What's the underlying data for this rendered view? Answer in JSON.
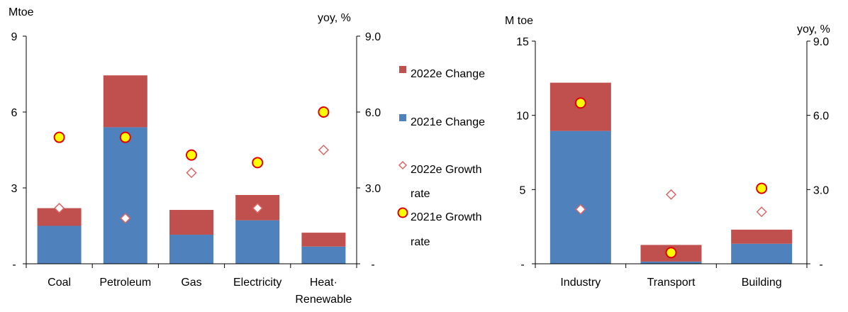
{
  "colors": {
    "change_2022": "#c0504d",
    "change_2021": "#4f81bd",
    "marker_2021_fill": "#ffff00",
    "marker_2021_stroke": "#e00000",
    "marker_2022_fill": "#ffffff",
    "marker_2022_stroke": "#e06666",
    "axis": "#000000"
  },
  "legend": {
    "placement": "between-panels",
    "items": [
      {
        "label_lines": [
          "2022e Change"
        ],
        "marker": "square",
        "color_key": "change_2022"
      },
      {
        "label_lines": [
          "2021e Change"
        ],
        "marker": "square",
        "color_key": "change_2021"
      },
      {
        "label_lines": [
          "2022e Growth",
          "rate"
        ],
        "marker": "diamond",
        "color_key": "marker_2022_stroke"
      },
      {
        "label_lines": [
          "2021e Growth",
          "rate"
        ],
        "marker": "circle",
        "color_key": "marker_2021_fill"
      }
    ]
  },
  "chart_data": [
    {
      "type": "bar",
      "stacked": true,
      "left_axis_unit": "Mtoe",
      "right_axis_unit": "yoy, %",
      "categories": [
        [
          "Coal"
        ],
        [
          "Petroleum"
        ],
        [
          "Gas"
        ],
        [
          "Electricity"
        ],
        [
          "Heat·",
          "Renewable"
        ]
      ],
      "ylim": [
        0,
        9
      ],
      "yticks": [
        0,
        3,
        6,
        9
      ],
      "ytick_labels": [
        "-",
        "3",
        "6",
        "9"
      ],
      "y2lim": [
        0,
        9
      ],
      "y2ticks": [
        0,
        3,
        6,
        9
      ],
      "y2tick_labels": [
        "-",
        "3.0",
        "6.0",
        "9.0"
      ],
      "grid": false,
      "series": [
        {
          "name": "2021e Change",
          "kind": "bar",
          "values": [
            1.5,
            5.4,
            1.15,
            1.72,
            0.68
          ]
        },
        {
          "name": "2022e Change",
          "kind": "bar",
          "values": [
            0.7,
            2.05,
            0.98,
            1.0,
            0.55
          ]
        },
        {
          "name": "2022e Growth rate",
          "kind": "marker",
          "axis": "right",
          "values": [
            2.2,
            1.8,
            3.6,
            2.2,
            4.5
          ]
        },
        {
          "name": "2021e Growth rate",
          "kind": "marker",
          "axis": "right",
          "values": [
            5.0,
            5.0,
            4.3,
            4.0,
            6.0
          ]
        }
      ]
    },
    {
      "type": "bar",
      "stacked": true,
      "left_axis_unit": "M toe",
      "right_axis_unit": "yoy, %",
      "categories": [
        [
          "Industry"
        ],
        [
          "Transport"
        ],
        [
          "Building"
        ]
      ],
      "ylim": [
        0,
        15
      ],
      "yticks": [
        0,
        5,
        10,
        15
      ],
      "ytick_labels": [
        "-",
        "5",
        "10",
        "15"
      ],
      "y2lim": [
        0,
        9
      ],
      "y2ticks": [
        0,
        3,
        6,
        9
      ],
      "y2tick_labels": [
        "-",
        "3.0",
        "6.0",
        "9.0"
      ],
      "grid": false,
      "series": [
        {
          "name": "2021e Change",
          "kind": "bar",
          "values": [
            8.95,
            0.15,
            1.35
          ]
        },
        {
          "name": "2022e Change",
          "kind": "bar",
          "values": [
            3.25,
            1.12,
            0.95
          ]
        },
        {
          "name": "2022e Growth rate",
          "kind": "marker",
          "axis": "right",
          "values": [
            2.2,
            2.8,
            2.1
          ]
        },
        {
          "name": "2021e Growth rate",
          "kind": "marker",
          "axis": "right",
          "values": [
            6.5,
            0.45,
            3.05
          ]
        }
      ]
    }
  ]
}
